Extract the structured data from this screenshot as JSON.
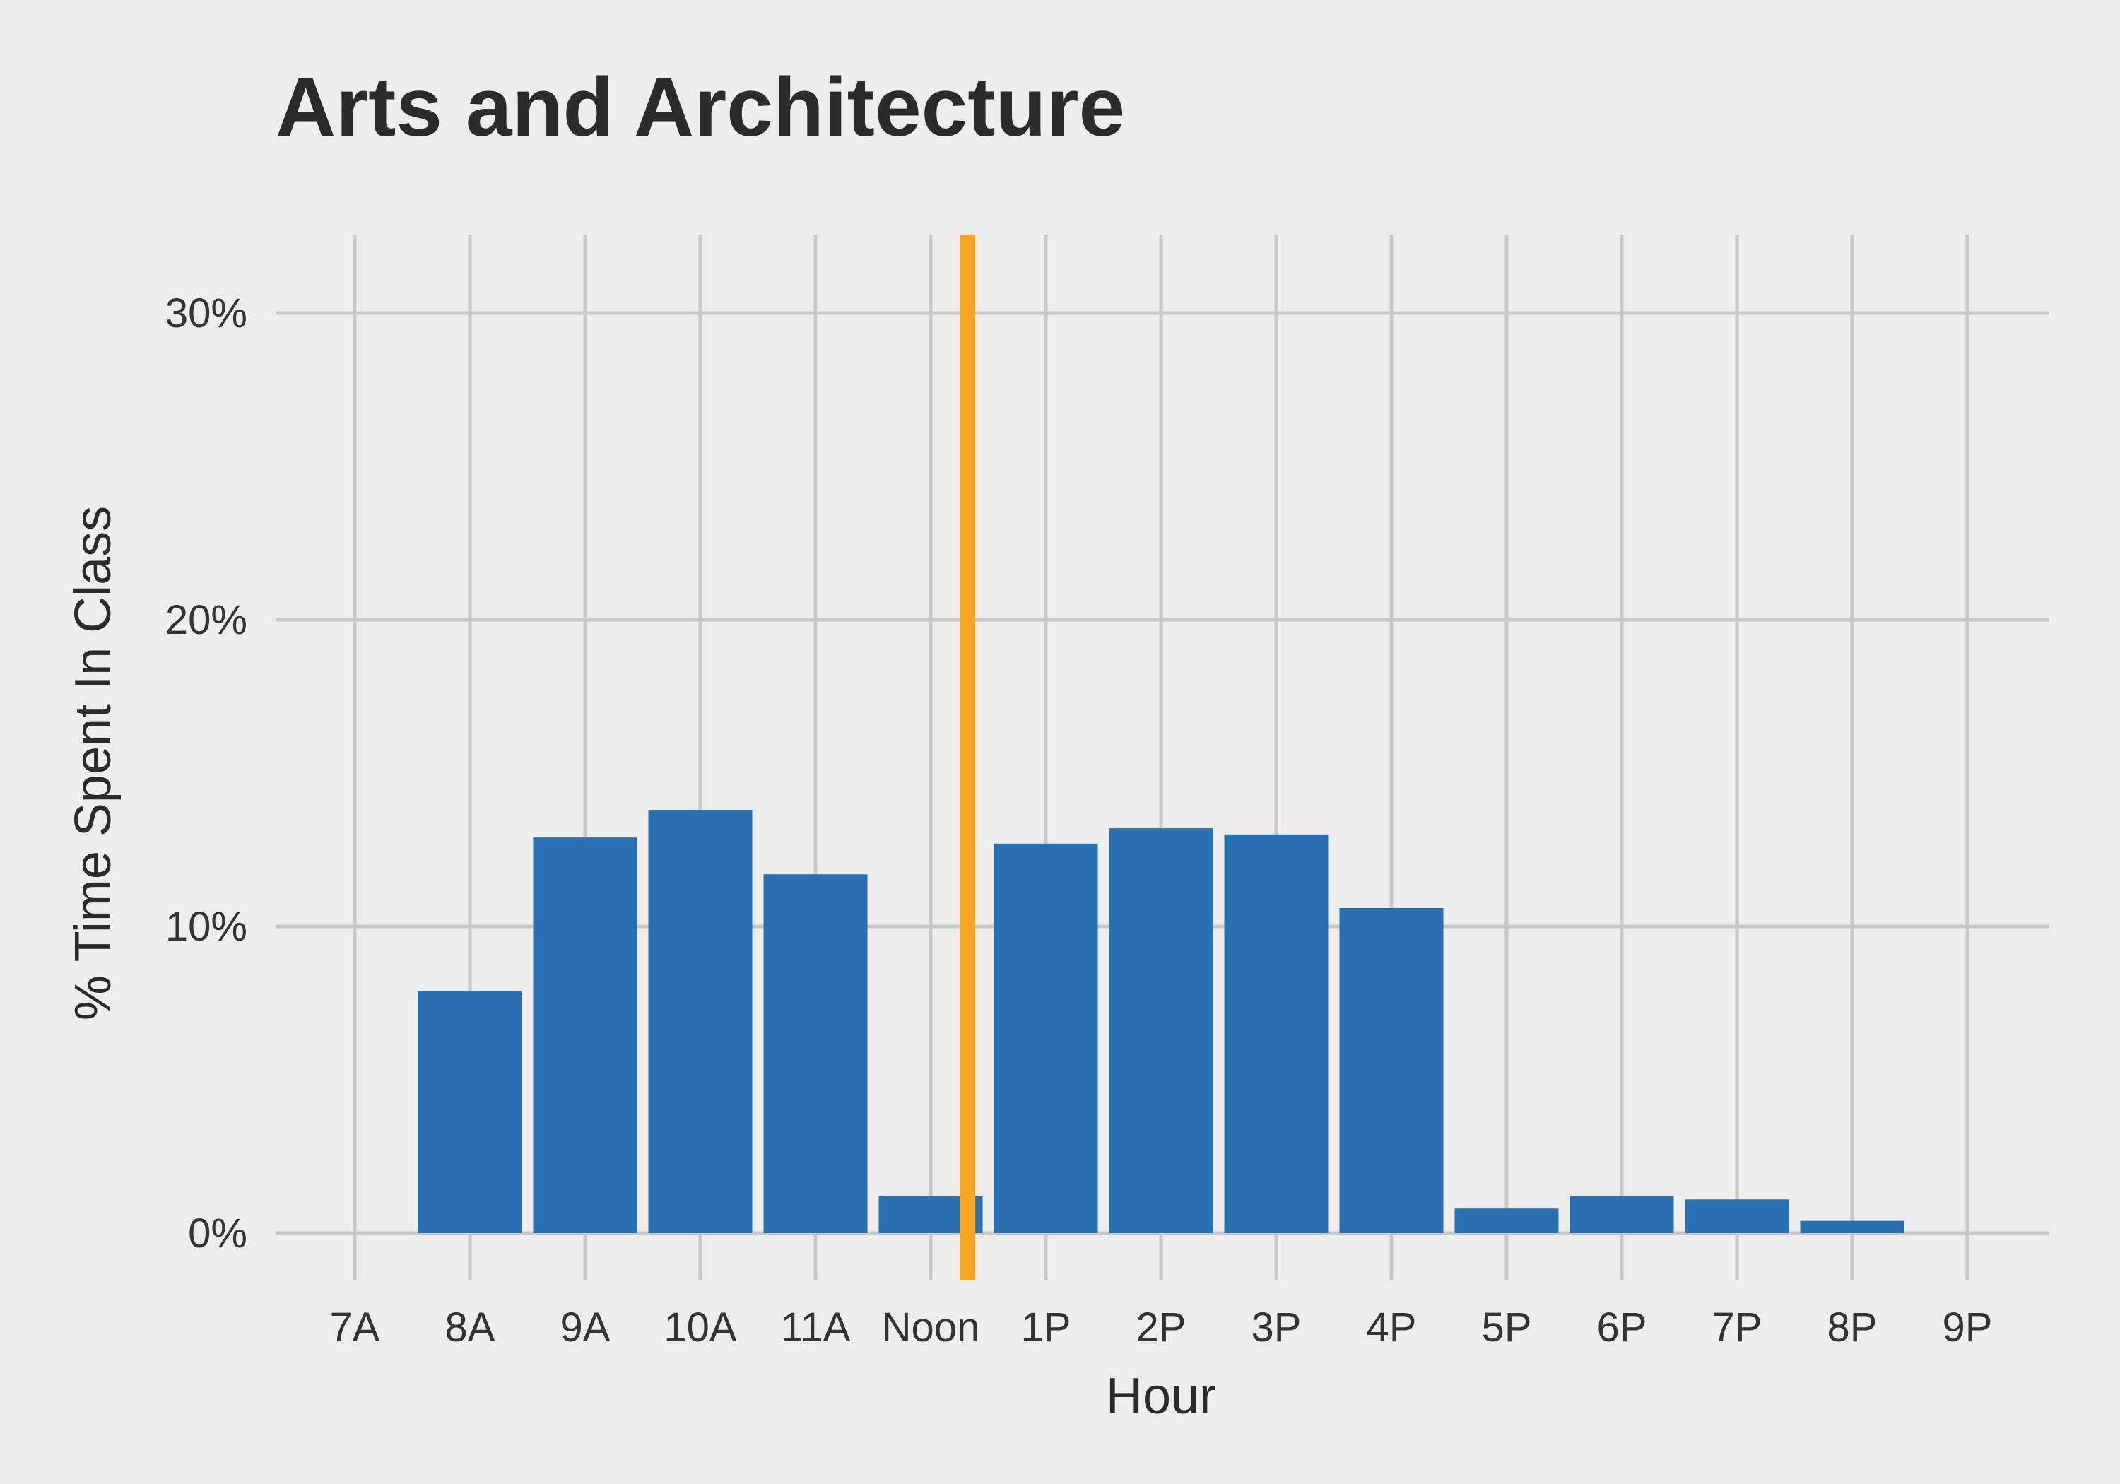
{
  "chart_data": {
    "type": "bar",
    "title": "Arts and Architecture",
    "xlabel": "Hour",
    "ylabel": "% Time Spent In Class",
    "categories": [
      "7A",
      "8A",
      "9A",
      "10A",
      "11A",
      "Noon",
      "1P",
      "2P",
      "3P",
      "4P",
      "5P",
      "6P",
      "7P",
      "8P",
      "9P"
    ],
    "values": [
      0,
      7.9,
      12.9,
      13.8,
      11.7,
      1.2,
      12.7,
      13.2,
      13.0,
      10.6,
      0.8,
      1.2,
      1.1,
      0.4,
      0
    ],
    "ylim": [
      -1.5,
      32.5
    ],
    "yticks": [
      0,
      10,
      20,
      30
    ],
    "ytick_labels": [
      "0%",
      "10%",
      "20%",
      "30%"
    ],
    "grid": true,
    "bar_color": "#2870b1",
    "reference_line": {
      "x_position": 5.32,
      "color": "#f7a823"
    }
  }
}
